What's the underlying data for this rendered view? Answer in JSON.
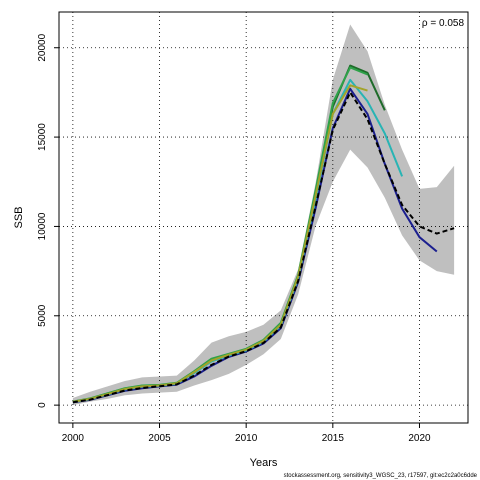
{
  "chart_data": {
    "type": "line",
    "xlabel": "Years",
    "ylabel": "SSB",
    "annotation": "ρ = 0.058",
    "footer": "stockassessment.org, sensitivity3_WGSC_23, r17597, git:ec2c2a0c6dde",
    "xlim": [
      1999.2,
      2022.8
    ],
    "ylim": [
      -1000,
      22000
    ],
    "xticks": [
      2000,
      2005,
      2010,
      2015,
      2020
    ],
    "yticks": [
      0,
      5000,
      10000,
      15000,
      20000
    ],
    "grid": true,
    "band": {
      "x": [
        2000,
        2001,
        2002,
        2003,
        2004,
        2005,
        2006,
        2007,
        2008,
        2009,
        2010,
        2011,
        2012,
        2013,
        2014,
        2015,
        2016,
        2017,
        2018,
        2019,
        2020,
        2021,
        2022
      ],
      "lower": [
        0,
        200,
        350,
        550,
        650,
        700,
        750,
        1100,
        1400,
        1750,
        2250,
        2850,
        3700,
        6200,
        10000,
        12500,
        14300,
        13300,
        11600,
        9500,
        8100,
        7500,
        7300
      ],
      "upper": [
        400,
        750,
        1050,
        1350,
        1550,
        1600,
        1650,
        2500,
        3500,
        3850,
        4100,
        4500,
        5300,
        7600,
        12400,
        18200,
        21300,
        19800,
        16800,
        14300,
        12100,
        12200,
        13400
      ],
      "color": "#bfbfbf"
    },
    "series": [
      {
        "color": "#1b1f8f",
        "x": [
          2000,
          2001,
          2002,
          2003,
          2004,
          2005,
          2006,
          2007,
          2008,
          2009,
          2010,
          2011,
          2012,
          2013,
          2014,
          2015,
          2016,
          2017,
          2018,
          2019,
          2020,
          2021
        ],
        "values": [
          150,
          300,
          550,
          800,
          950,
          1050,
          1150,
          1600,
          2200,
          2700,
          3000,
          3450,
          4300,
          6900,
          11000,
          15500,
          17700,
          16300,
          13500,
          11000,
          9400,
          8600
        ]
      },
      {
        "color": "#28b4b4",
        "x": [
          2000,
          2001,
          2002,
          2003,
          2004,
          2005,
          2006,
          2007,
          2008,
          2009,
          2010,
          2011,
          2012,
          2013,
          2014,
          2015,
          2016,
          2017,
          2018,
          2019
        ],
        "values": [
          170,
          330,
          600,
          880,
          1030,
          1080,
          1200,
          1800,
          2450,
          2780,
          3060,
          3550,
          4450,
          7100,
          11500,
          16300,
          18200,
          17000,
          15200,
          12800
        ]
      },
      {
        "color": "#1f6b2a",
        "x": [
          2000,
          2001,
          2002,
          2003,
          2004,
          2005,
          2006,
          2007,
          2008,
          2009,
          2010,
          2011,
          2012,
          2013,
          2014,
          2015,
          2016,
          2017,
          2018
        ],
        "values": [
          190,
          360,
          650,
          930,
          1080,
          1120,
          1230,
          1880,
          2550,
          2850,
          3120,
          3620,
          4550,
          7250,
          11900,
          16700,
          19000,
          18600,
          16500
        ]
      },
      {
        "color": "#2ea24a",
        "x": [
          2000,
          2001,
          2002,
          2003,
          2004,
          2005,
          2006,
          2007,
          2008,
          2009,
          2010,
          2011,
          2012,
          2013,
          2014,
          2015,
          2016,
          2017
        ],
        "values": [
          200,
          380,
          660,
          950,
          1100,
          1130,
          1250,
          1900,
          2600,
          2870,
          3150,
          3650,
          4600,
          7300,
          12000,
          16900,
          18900,
          18500
        ]
      },
      {
        "color": "#a3a32a",
        "x": [
          2000,
          2001,
          2002,
          2003,
          2004,
          2005,
          2006,
          2007,
          2008,
          2009,
          2010,
          2011,
          2012,
          2013,
          2014,
          2015,
          2016,
          2017
        ],
        "values": [
          180,
          350,
          620,
          900,
          1050,
          1100,
          1220,
          1850,
          2500,
          2820,
          3100,
          3600,
          4500,
          7200,
          11700,
          16300,
          17900,
          17600
        ]
      },
      {
        "color": "#000000",
        "dashed": true,
        "x": [
          2000,
          2001,
          2002,
          2003,
          2004,
          2005,
          2006,
          2007,
          2008,
          2009,
          2010,
          2011,
          2012,
          2013,
          2014,
          2015,
          2016,
          2017,
          2018,
          2019,
          2020,
          2021,
          2022
        ],
        "values": [
          160,
          310,
          560,
          820,
          960,
          1060,
          1160,
          1650,
          2250,
          2720,
          3020,
          3480,
          4350,
          6950,
          11100,
          15400,
          17500,
          16000,
          13500,
          11200,
          10000,
          9600,
          9900
        ]
      }
    ]
  }
}
